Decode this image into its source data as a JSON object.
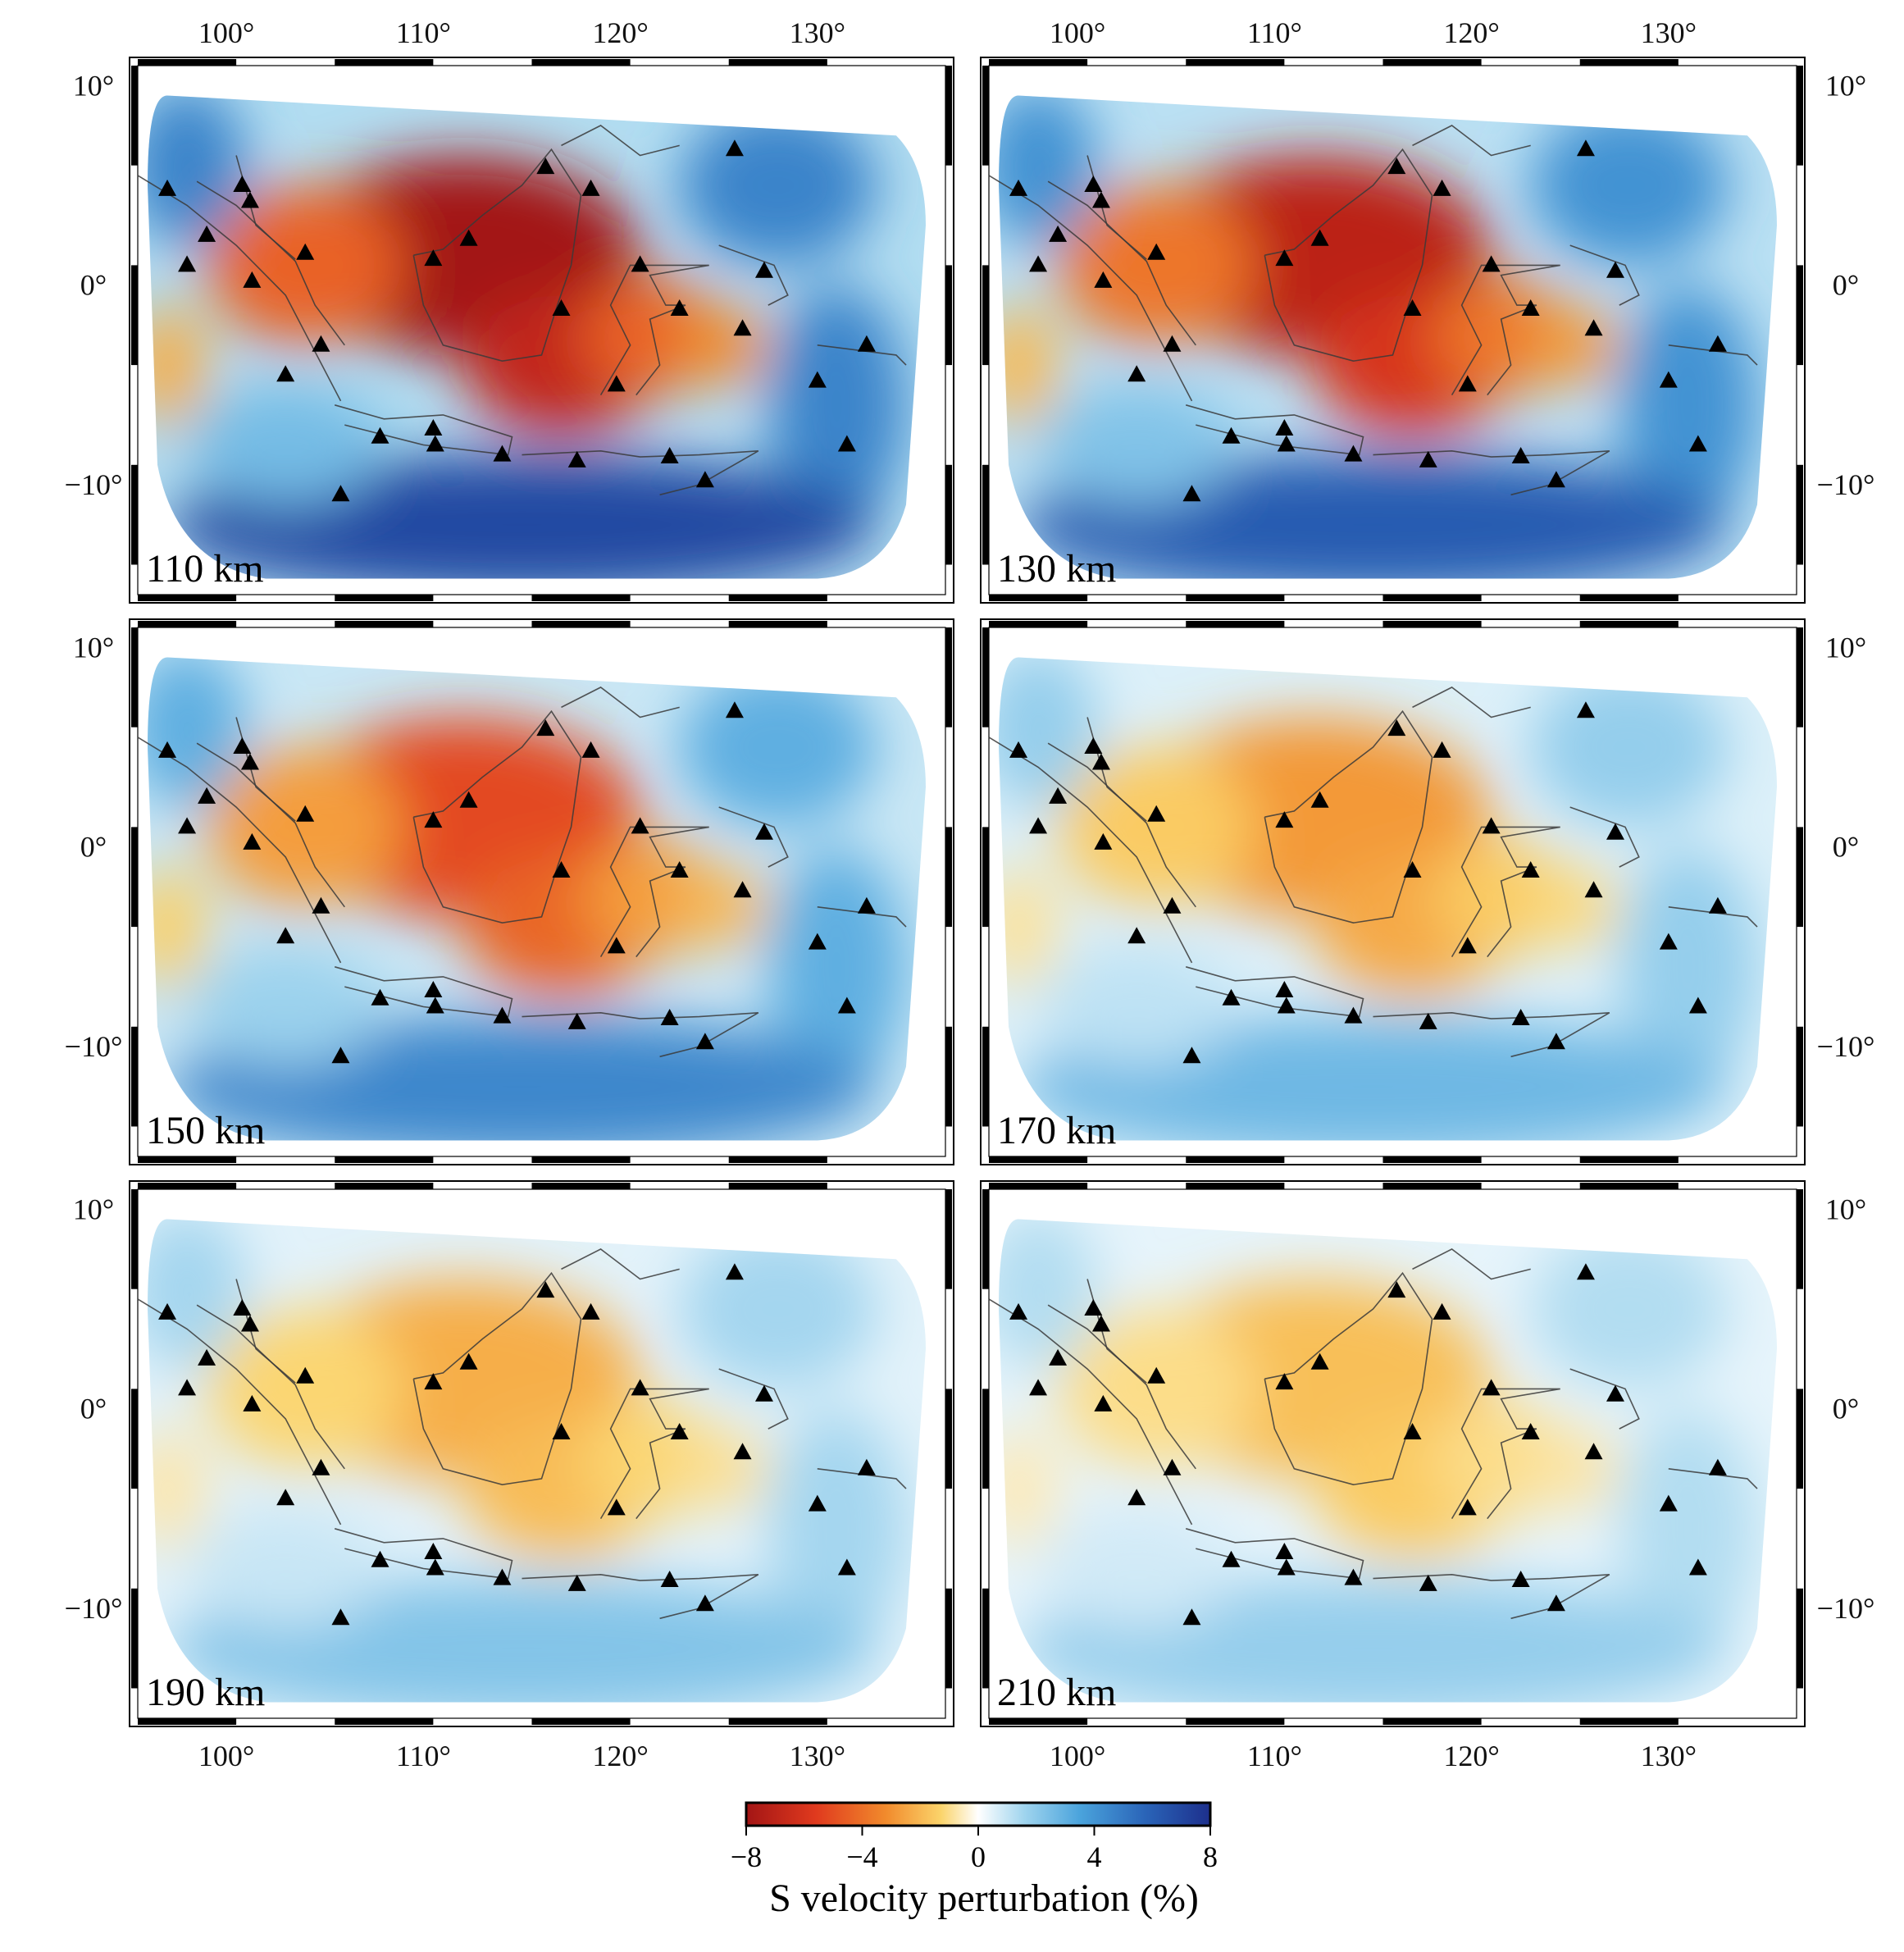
{
  "figure": {
    "colorbar": {
      "title": "S velocity perturbation (%)",
      "ticks": [
        "−8",
        "−4",
        "0",
        "4",
        "8"
      ],
      "range": [
        -8,
        8
      ],
      "colors": [
        "#a31515",
        "#e03a1e",
        "#f18a2c",
        "#fbd46b",
        "#ffffff",
        "#9fd4ee",
        "#4aa3dc",
        "#2a64b8",
        "#1d2f8c"
      ]
    },
    "lon_ticks": [
      "100°",
      "110°",
      "120°",
      "130°"
    ],
    "lat_ticks": [
      "10°",
      "0°",
      "−10°"
    ],
    "panels": [
      {
        "depth_label": "110 km",
        "intensity": 1.0
      },
      {
        "depth_label": "130 km",
        "intensity": 0.9
      },
      {
        "depth_label": "150 km",
        "intensity": 0.7
      },
      {
        "depth_label": "170 km",
        "intensity": 0.45
      },
      {
        "depth_label": "190 km",
        "intensity": 0.38
      },
      {
        "depth_label": "210 km",
        "intensity": 0.32
      }
    ],
    "legend_marker": "station-triangle-icon"
  }
}
